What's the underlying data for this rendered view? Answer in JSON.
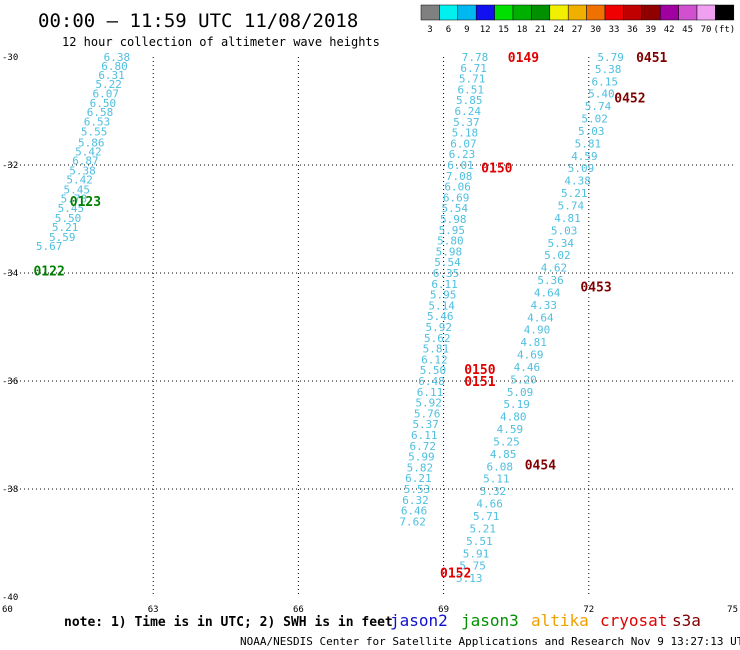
{
  "header": {
    "title": "00:00 – 11:59 UTC 11/08/2018",
    "subtitle": "12 hour collection of altimeter wave heights"
  },
  "colorbar": {
    "labels": [
      "3",
      "6",
      "9",
      "12",
      "15",
      "18",
      "21",
      "24",
      "27",
      "30",
      "33",
      "36",
      "39",
      "42",
      "45",
      "70",
      "(ft)"
    ],
    "colors": [
      "#808080",
      "#00f0f0",
      "#00b8f0",
      "#1010f0",
      "#00e000",
      "#00b000",
      "#009000",
      "#f0f000",
      "#f0b000",
      "#f07000",
      "#f00000",
      "#c00000",
      "#900000",
      "#a000a0",
      "#d050d0",
      "#f0a0f0",
      "#000000"
    ]
  },
  "chart_data": {
    "type": "scatter",
    "xlim": [
      60,
      75
    ],
    "ylim": [
      -40,
      -30
    ],
    "xticks": [
      "60",
      "63",
      "66",
      "69",
      "72",
      "75"
    ],
    "yticks": [
      "-30",
      "-32",
      "-34",
      "-36",
      "-38",
      "-40"
    ],
    "grid": true,
    "series": [
      {
        "color": "#4fbfe0",
        "points": [
          [
            62.25,
            -30.0,
            "6.38"
          ],
          [
            62.2,
            -30.17,
            "6.80"
          ],
          [
            62.14,
            -30.33,
            "6.31"
          ],
          [
            62.08,
            -30.5,
            "5.22"
          ],
          [
            62.02,
            -30.68,
            "6.07"
          ],
          [
            61.96,
            -30.85,
            "6.50"
          ],
          [
            61.9,
            -31.02,
            "6.58"
          ],
          [
            61.84,
            -31.19,
            "6.53"
          ],
          [
            61.78,
            -31.38,
            "5.55"
          ],
          [
            61.72,
            -31.58,
            "5.86"
          ],
          [
            61.66,
            -31.75,
            "5.42"
          ],
          [
            61.6,
            -31.92,
            "6.87"
          ],
          [
            61.54,
            -32.1,
            "5.38"
          ],
          [
            61.48,
            -32.27,
            "5.42"
          ],
          [
            61.42,
            -32.45,
            "5.45"
          ],
          [
            61.36,
            -32.62,
            "5.78"
          ],
          [
            61.3,
            -32.8,
            "5.45"
          ],
          [
            61.24,
            -32.98,
            "5.50"
          ],
          [
            61.18,
            -33.15,
            "5.21"
          ],
          [
            61.12,
            -33.33,
            "5.59"
          ],
          [
            60.85,
            -33.5,
            "5.67"
          ]
        ]
      },
      {
        "color": "#4fbfe0",
        "points": [
          [
            69.65,
            -30.0,
            "7.78"
          ],
          [
            69.62,
            -30.2,
            "6.71"
          ],
          [
            69.59,
            -30.4,
            "5.71"
          ],
          [
            69.56,
            -30.6,
            "6.51"
          ],
          [
            69.53,
            -30.8,
            "5.85"
          ],
          [
            69.5,
            -31.0,
            "6.24"
          ],
          [
            69.47,
            -31.2,
            "5.37"
          ],
          [
            69.44,
            -31.4,
            "5.18"
          ],
          [
            69.41,
            -31.6,
            "6.07"
          ],
          [
            69.38,
            -31.8,
            "6.23"
          ],
          [
            69.35,
            -32.0,
            "6.01"
          ],
          [
            69.32,
            -32.2,
            "7.08"
          ],
          [
            69.29,
            -32.4,
            "6.06"
          ],
          [
            69.26,
            -32.6,
            "6.69"
          ],
          [
            69.23,
            -32.8,
            "5.54"
          ],
          [
            69.2,
            -33.0,
            "5.98"
          ],
          [
            69.17,
            -33.2,
            "5.95"
          ],
          [
            69.14,
            -33.4,
            "5.80"
          ],
          [
            69.11,
            -33.6,
            "5.98"
          ],
          [
            69.08,
            -33.8,
            "5.54"
          ],
          [
            69.05,
            -34.0,
            "6.35"
          ],
          [
            69.02,
            -34.2,
            "6.11"
          ],
          [
            68.99,
            -34.4,
            "5.95"
          ],
          [
            68.96,
            -34.6,
            "5.14"
          ],
          [
            68.93,
            -34.8,
            "5.46"
          ],
          [
            68.9,
            -35.0,
            "5.92"
          ],
          [
            68.87,
            -35.2,
            "5.62"
          ],
          [
            68.84,
            -35.4,
            "5.81"
          ],
          [
            68.81,
            -35.6,
            "6.12"
          ],
          [
            68.78,
            -35.8,
            "5.50"
          ],
          [
            68.75,
            -36.0,
            "6.48"
          ],
          [
            68.72,
            -36.2,
            "6.11"
          ],
          [
            68.69,
            -36.4,
            "5.92"
          ],
          [
            68.66,
            -36.6,
            "5.76"
          ],
          [
            68.63,
            -36.8,
            "5.37"
          ],
          [
            68.6,
            -37.0,
            "6.11"
          ],
          [
            68.57,
            -37.2,
            "6.72"
          ],
          [
            68.54,
            -37.4,
            "5.99"
          ],
          [
            68.51,
            -37.6,
            "5.82"
          ],
          [
            68.48,
            -37.8,
            "6.21"
          ],
          [
            68.45,
            -38.0,
            "5.53"
          ],
          [
            68.42,
            -38.2,
            "6.32"
          ],
          [
            68.39,
            -38.4,
            "6.46"
          ],
          [
            68.36,
            -38.6,
            "7.62"
          ]
        ]
      },
      {
        "color": "#4fbfe0",
        "points": [
          [
            72.45,
            -30.0,
            "5.79"
          ],
          [
            72.4,
            -30.22,
            "5.38"
          ],
          [
            72.33,
            -30.45,
            "6.15"
          ],
          [
            72.26,
            -30.68,
            "5.40"
          ],
          [
            72.19,
            -30.91,
            "5.74"
          ],
          [
            72.12,
            -31.14,
            "5.02"
          ],
          [
            72.05,
            -31.37,
            "5.03"
          ],
          [
            71.98,
            -31.6,
            "5.81"
          ],
          [
            71.91,
            -31.83,
            "4.59"
          ],
          [
            71.84,
            -32.06,
            "5.09"
          ],
          [
            71.77,
            -32.29,
            "4.38"
          ],
          [
            71.7,
            -32.52,
            "5.21"
          ],
          [
            71.63,
            -32.75,
            "5.74"
          ],
          [
            71.56,
            -32.98,
            "4.81"
          ],
          [
            71.49,
            -33.21,
            "5.03"
          ],
          [
            71.42,
            -33.44,
            "5.34"
          ],
          [
            71.35,
            -33.67,
            "5.02"
          ],
          [
            71.28,
            -33.9,
            "4.62"
          ],
          [
            71.21,
            -34.13,
            "5.36"
          ],
          [
            71.14,
            -34.36,
            "4.64"
          ],
          [
            71.07,
            -34.59,
            "4.33"
          ],
          [
            71.0,
            -34.82,
            "4.64"
          ],
          [
            70.93,
            -35.05,
            "4.90"
          ],
          [
            70.86,
            -35.28,
            "4.81"
          ],
          [
            70.79,
            -35.51,
            "4.69"
          ],
          [
            70.72,
            -35.74,
            "4.46"
          ],
          [
            70.65,
            -35.97,
            "5.20"
          ],
          [
            70.58,
            -36.2,
            "5.09"
          ],
          [
            70.51,
            -36.43,
            "5.19"
          ],
          [
            70.44,
            -36.66,
            "4.80"
          ],
          [
            70.37,
            -36.89,
            "4.59"
          ],
          [
            70.3,
            -37.12,
            "5.25"
          ],
          [
            70.23,
            -37.35,
            "4.85"
          ],
          [
            70.16,
            -37.58,
            "6.08"
          ],
          [
            70.09,
            -37.81,
            "5.11"
          ],
          [
            70.02,
            -38.04,
            "5.32"
          ],
          [
            69.95,
            -38.27,
            "4.66"
          ],
          [
            69.88,
            -38.5,
            "5.71"
          ],
          [
            69.81,
            -38.73,
            "5.21"
          ],
          [
            69.74,
            -38.96,
            "5.51"
          ],
          [
            69.67,
            -39.19,
            "5.91"
          ],
          [
            69.6,
            -39.42,
            "5.75"
          ],
          [
            69.53,
            -39.65,
            "5.13"
          ]
        ]
      }
    ],
    "annotations": [
      {
        "text": "0123",
        "x": 61.6,
        "y": -32.67,
        "color": "#008000"
      },
      {
        "text": "0122",
        "x": 60.85,
        "y": -33.95,
        "color": "#008000"
      },
      {
        "text": "0149",
        "x": 70.65,
        "y": -30.0,
        "color": "#e00000"
      },
      {
        "text": "0150",
        "x": 70.1,
        "y": -32.05,
        "color": "#e00000"
      },
      {
        "text": "0150",
        "x": 69.75,
        "y": -35.78,
        "color": "#e00000"
      },
      {
        "text": "0151",
        "x": 69.75,
        "y": -36.0,
        "color": "#e00000"
      },
      {
        "text": "0152",
        "x": 69.25,
        "y": -39.55,
        "color": "#e00000"
      },
      {
        "text": "0451",
        "x": 73.3,
        "y": -30.0,
        "color": "#800000"
      },
      {
        "text": "0452",
        "x": 72.85,
        "y": -30.75,
        "color": "#800000"
      },
      {
        "text": "0453",
        "x": 72.15,
        "y": -34.25,
        "color": "#800000"
      },
      {
        "text": "0454",
        "x": 71.0,
        "y": -37.55,
        "color": "#800000"
      }
    ]
  },
  "footer": {
    "note": "note: 1) Time is in UTC; 2) SWH is in feet",
    "satellites": [
      {
        "label": "jason2",
        "color": "#1010d0"
      },
      {
        "label": "jason3",
        "color": "#009000"
      },
      {
        "label": "altika",
        "color": "#f0a000"
      },
      {
        "label": "cryosat",
        "color": "#e00000"
      },
      {
        "label": "s3a",
        "color": "#800000"
      }
    ],
    "credit": "NOAA/NESDIS Center for Satellite Applications and Research   Nov  9 13:27:13 UTC 2018"
  }
}
